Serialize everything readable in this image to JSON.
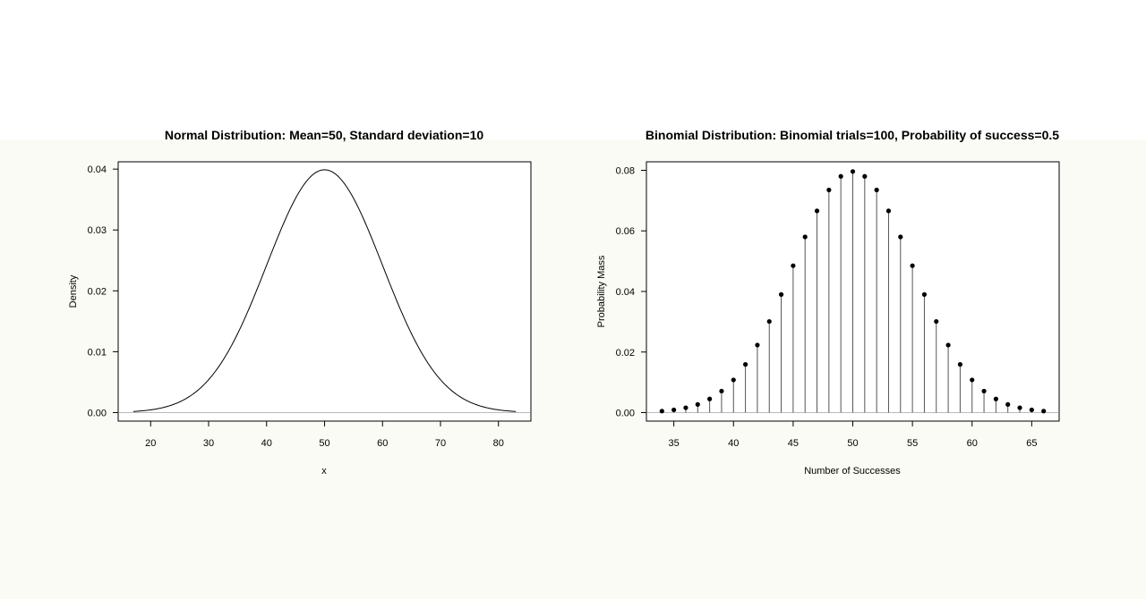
{
  "chart_data": [
    {
      "type": "line",
      "title": "Normal Distribution:  Mean=50, Standard deviation=10",
      "xlabel": "x",
      "ylabel": "Density",
      "mean": 50,
      "sd": 10,
      "x_range": [
        17,
        83
      ],
      "xlim": [
        14.4,
        85.6
      ],
      "ylim": [
        -0.0014,
        0.0412
      ],
      "x_ticks": [
        20,
        30,
        40,
        50,
        60,
        70,
        80
      ],
      "y_ticks": [
        0.0,
        0.01,
        0.02,
        0.03,
        0.04
      ],
      "y_tick_labels": [
        "0.00",
        "0.01",
        "0.02",
        "0.03",
        "0.04"
      ],
      "grid": false,
      "baseline": 0
    },
    {
      "type": "scatter",
      "title": "Binomial Distribution:  Binomial trials=100, Probability of success=0.5",
      "xlabel": "Number of Successes",
      "ylabel": "Probability Mass",
      "style": "lollipop",
      "trials": 100,
      "p": 0.5,
      "x": [
        34,
        35,
        36,
        37,
        38,
        39,
        40,
        41,
        42,
        43,
        44,
        45,
        46,
        47,
        48,
        49,
        50,
        51,
        52,
        53,
        54,
        55,
        56,
        57,
        58,
        59,
        60,
        61,
        62,
        63,
        64,
        65,
        66
      ],
      "y": [
        0.0005,
        0.0009,
        0.0016,
        0.0027,
        0.0045,
        0.0071,
        0.0108,
        0.0159,
        0.0223,
        0.0301,
        0.039,
        0.0485,
        0.058,
        0.0666,
        0.0735,
        0.078,
        0.0796,
        0.078,
        0.0735,
        0.0666,
        0.058,
        0.0485,
        0.039,
        0.0301,
        0.0223,
        0.0159,
        0.0108,
        0.0071,
        0.0045,
        0.0027,
        0.0016,
        0.0009,
        0.0005
      ],
      "xlim": [
        32.7,
        67.3
      ],
      "ylim": [
        -0.0028,
        0.0828
      ],
      "x_ticks": [
        35,
        40,
        45,
        50,
        55,
        60,
        65
      ],
      "y_ticks": [
        0.0,
        0.02,
        0.04,
        0.06,
        0.08
      ],
      "y_tick_labels": [
        "0.00",
        "0.02",
        "0.04",
        "0.06",
        "0.08"
      ],
      "grid": false,
      "baseline": 0
    }
  ]
}
